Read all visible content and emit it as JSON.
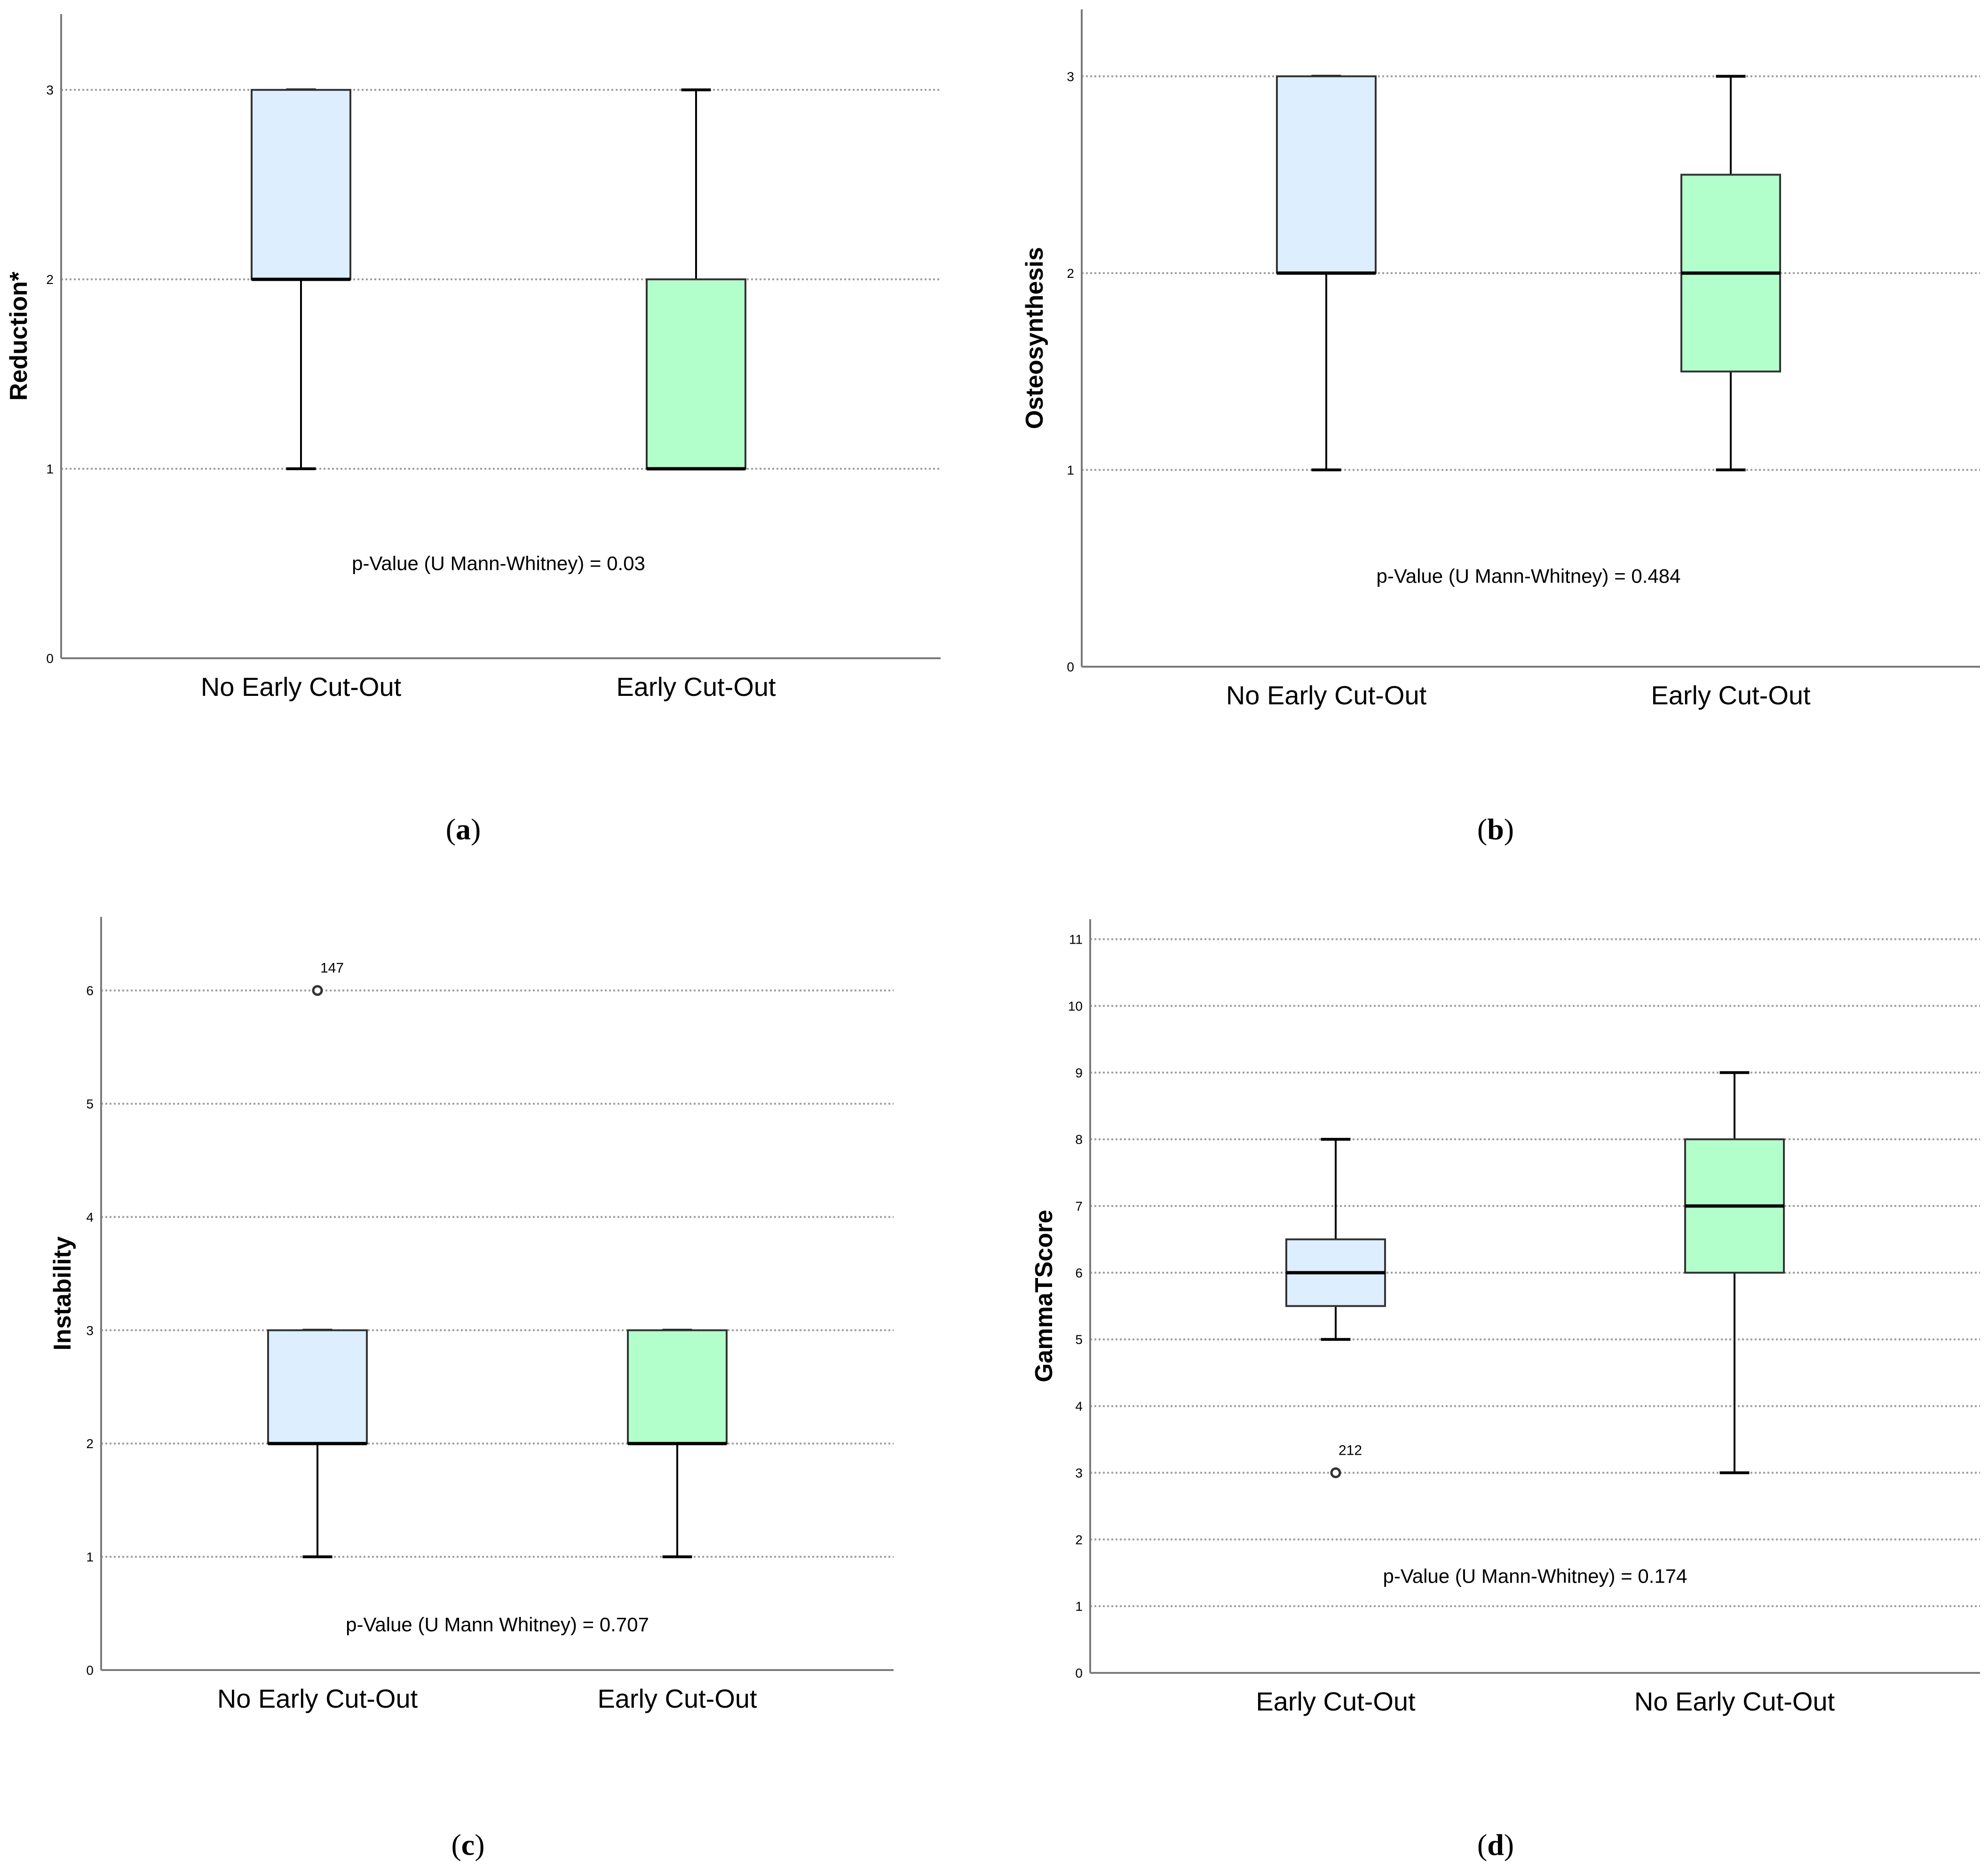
{
  "colors": {
    "box_blue": "#ddeeff",
    "box_green": "#b3ffcc",
    "grid": "#9e9e9e",
    "axis": "#7a7a7a"
  },
  "chart_data": [
    {
      "type": "boxplot",
      "panel": "a",
      "ylabel": "Reduction*",
      "categories": [
        "No Early Cut-Out",
        "Early Cut-Out"
      ],
      "ylim": [
        0,
        3.4
      ],
      "yticks": [
        0,
        1,
        2,
        3
      ],
      "grid": true,
      "boxes": [
        {
          "category": "No Early Cut-Out",
          "min": 1,
          "q1": 2,
          "median": 2,
          "q3": 3,
          "max": 3,
          "color": "#ddeeff",
          "outliers": []
        },
        {
          "category": "Early Cut-Out",
          "min": 1,
          "q1": 1,
          "median": 1,
          "q3": 2,
          "max": 3,
          "color": "#b3ffcc",
          "outliers": []
        }
      ],
      "annotation": {
        "text": "p-Value (U Mann-Whitney) = 0.03",
        "y": 0.5
      }
    },
    {
      "type": "boxplot",
      "panel": "b",
      "ylabel": "Osteosynthesis",
      "categories": [
        "No Early Cut-Out",
        "Early Cut-Out"
      ],
      "ylim": [
        0,
        3.34
      ],
      "yticks": [
        0,
        1,
        2,
        3
      ],
      "grid": true,
      "boxes": [
        {
          "category": "No Early Cut-Out",
          "min": 1,
          "q1": 2,
          "median": 2,
          "q3": 3,
          "max": 3,
          "color": "#ddeeff",
          "outliers": []
        },
        {
          "category": "Early Cut-Out",
          "min": 1,
          "q1": 1.5,
          "median": 2,
          "q3": 2.5,
          "max": 3,
          "color": "#b3ffcc",
          "outliers": []
        }
      ],
      "annotation": {
        "text": "p-Value (U Mann-Whitney) = 0.484",
        "y": 0.46
      }
    },
    {
      "type": "boxplot",
      "panel": "c",
      "ylabel": "Instability",
      "categories": [
        "No Early Cut-Out",
        "Early Cut-Out"
      ],
      "ylim": [
        0,
        6.65
      ],
      "yticks": [
        0,
        1,
        2,
        3,
        4,
        5,
        6
      ],
      "grid": true,
      "boxes": [
        {
          "category": "No Early Cut-Out",
          "min": 1,
          "q1": 2,
          "median": 2,
          "q3": 3,
          "max": 3,
          "color": "#ddeeff",
          "outliers": [
            {
              "value": 6,
              "label": "147"
            }
          ]
        },
        {
          "category": "Early Cut-Out",
          "min": 1,
          "q1": 2,
          "median": 2,
          "q3": 3,
          "max": 3,
          "color": "#b3ffcc",
          "outliers": []
        }
      ],
      "annotation": {
        "text": "p-Value (U Mann Whitney) = 0.707",
        "y": 0.4
      }
    },
    {
      "type": "boxplot",
      "panel": "d",
      "ylabel": "GammaTScore",
      "categories": [
        "Early Cut-Out",
        "No Early Cut-Out"
      ],
      "ylim": [
        0,
        11.3
      ],
      "yticks": [
        0,
        1,
        2,
        3,
        4,
        5,
        6,
        7,
        8,
        9,
        10,
        11
      ],
      "grid": true,
      "boxes": [
        {
          "category": "Early Cut-Out",
          "min": 5,
          "q1": 5.5,
          "median": 6,
          "q3": 6.5,
          "max": 8,
          "color": "#ddeeff",
          "outliers": [
            {
              "value": 3,
              "label": "212"
            }
          ]
        },
        {
          "category": "No Early Cut-Out",
          "min": 3,
          "q1": 6,
          "median": 7,
          "q3": 8,
          "max": 9,
          "color": "#b3ffcc",
          "outliers": []
        }
      ],
      "annotation": {
        "text": "p-Value (U Mann-Whitney) = 0.174",
        "y": 1.45
      }
    }
  ],
  "panel_labels": [
    {
      "open": "(",
      "letter": "a",
      "close": ")"
    },
    {
      "open": "(",
      "letter": "b",
      "close": ")"
    },
    {
      "open": "(",
      "letter": "c",
      "close": ")"
    },
    {
      "open": "(",
      "letter": "d",
      "close": ")"
    }
  ]
}
